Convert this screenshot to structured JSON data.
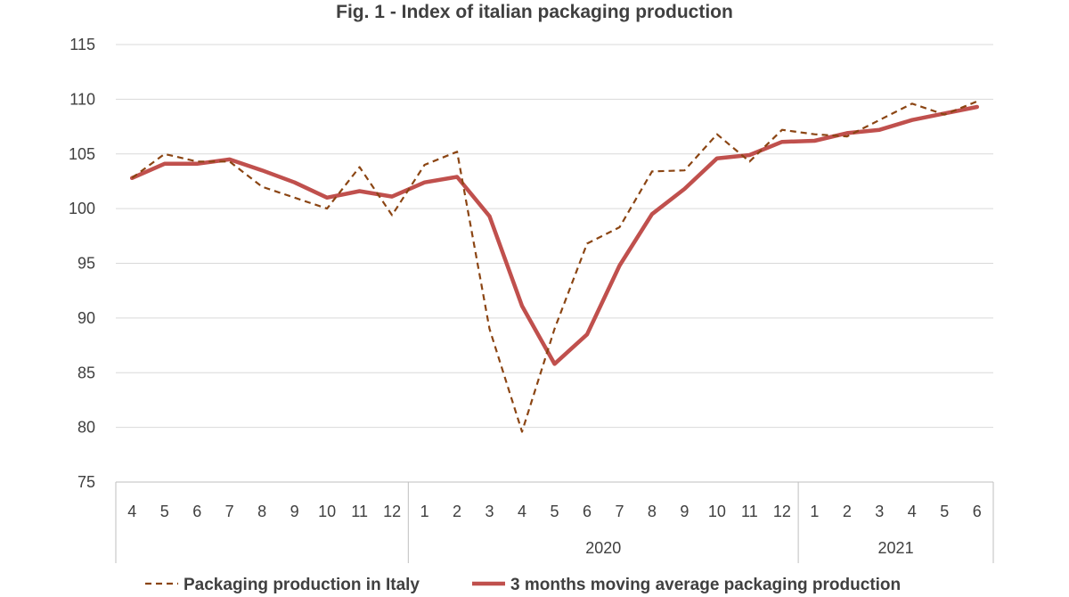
{
  "chart_data": {
    "type": "line",
    "title": "Fig. 1 - Index of italian packaging production",
    "categories": [
      "4",
      "5",
      "6",
      "7",
      "8",
      "9",
      "10",
      "11",
      "12",
      "1",
      "2",
      "3",
      "4",
      "5",
      "6",
      "7",
      "8",
      "9",
      "10",
      "11",
      "12",
      "1",
      "2",
      "3",
      "4",
      "5",
      "6"
    ],
    "year_groups": [
      {
        "label": "",
        "start": 0,
        "count": 9
      },
      {
        "label": "2020",
        "start": 9,
        "count": 12
      },
      {
        "label": "2021",
        "start": 21,
        "count": 6
      }
    ],
    "ylim": [
      75,
      115
    ],
    "yticks": [
      75,
      80,
      85,
      90,
      95,
      100,
      105,
      110,
      115
    ],
    "grid": true,
    "legend_position": "bottom",
    "series": [
      {
        "name": "Packaging production in Italy",
        "style": "dashed",
        "color": "#8B4513",
        "values": [
          102.8,
          105.0,
          104.3,
          104.3,
          102.0,
          101.0,
          100.0,
          103.8,
          99.4,
          104.0,
          105.2,
          89.0,
          79.6,
          89.0,
          96.8,
          98.3,
          103.4,
          103.5,
          106.8,
          104.3,
          107.2,
          106.8,
          106.6,
          108.1,
          109.6,
          108.6,
          109.8
        ]
      },
      {
        "name": "3 months moving average packaging production",
        "style": "solid",
        "color": "#C0504D",
        "values": [
          102.8,
          104.1,
          104.1,
          104.5,
          103.5,
          102.4,
          101.0,
          101.6,
          101.1,
          102.4,
          102.9,
          99.3,
          91.1,
          85.8,
          88.5,
          94.8,
          99.5,
          101.8,
          104.6,
          104.9,
          106.1,
          106.2,
          106.9,
          107.2,
          108.1,
          108.7,
          109.3
        ]
      }
    ]
  }
}
